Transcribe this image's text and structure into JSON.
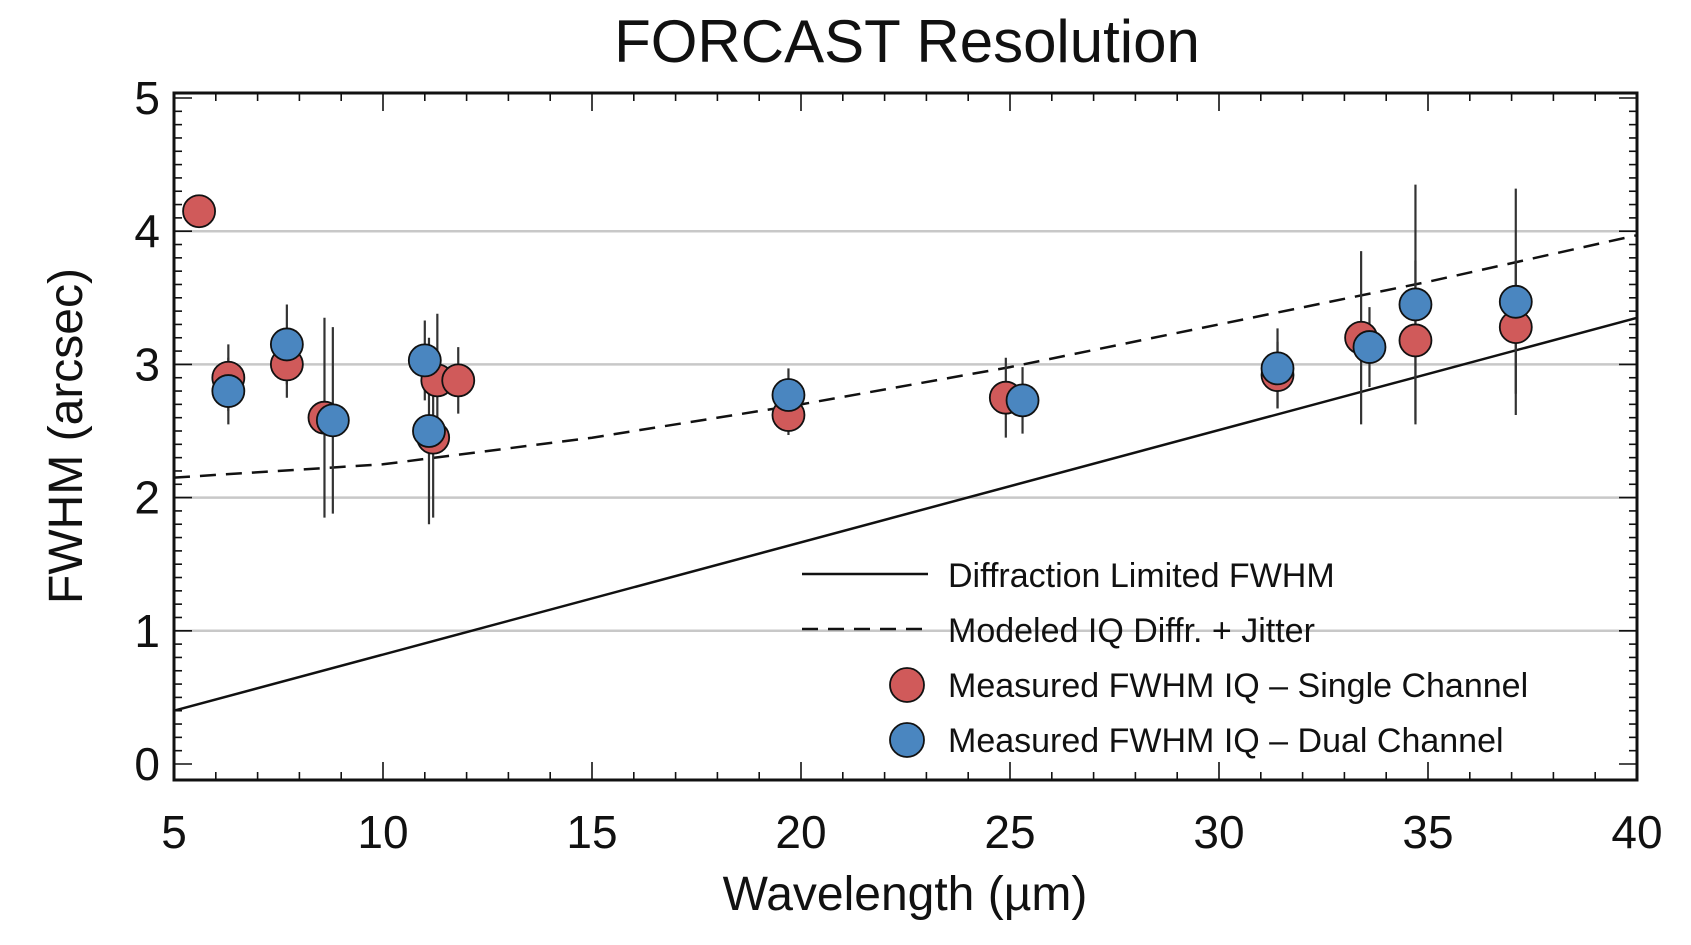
{
  "chart_data": {
    "type": "scatter",
    "title": "FORCAST Resolution",
    "xlabel": "Wavelength (µm)",
    "ylabel": "FWHM (arcsec)",
    "xlim": [
      5,
      40
    ],
    "ylim": [
      0,
      5
    ],
    "xticks": [
      "5",
      "10",
      "15",
      "20",
      "25",
      "30",
      "35",
      "40"
    ],
    "yticks": [
      "0",
      "1",
      "2",
      "3",
      "4",
      "5"
    ],
    "grid": "horizontal",
    "legend_position": "bottom-right",
    "lines": [
      {
        "name": "Diffraction Limited FWHM",
        "style": "solid",
        "x": [
          5,
          40
        ],
        "y": [
          0.4,
          3.35
        ]
      },
      {
        "name": "Modeled IQ Diffr. + Jitter",
        "style": "dashed",
        "x": [
          5,
          10,
          15,
          20,
          25,
          30,
          35,
          40
        ],
        "y": [
          2.15,
          2.25,
          2.45,
          2.7,
          2.98,
          3.3,
          3.62,
          3.97
        ]
      }
    ],
    "series": [
      {
        "name": "Measured FWHM IQ – Single Channel",
        "color": "#d05a5a",
        "points": [
          {
            "x": 5.6,
            "y": 4.15,
            "err": 0.05
          },
          {
            "x": 6.3,
            "y": 2.9,
            "err": 0.25
          },
          {
            "x": 7.7,
            "y": 3.0,
            "err": 0.25
          },
          {
            "x": 8.6,
            "y": 2.6,
            "err": 0.75
          },
          {
            "x": 11.2,
            "y": 2.45,
            "err": 0.6
          },
          {
            "x": 11.3,
            "y": 2.88,
            "err": 0.5
          },
          {
            "x": 11.8,
            "y": 2.88,
            "err": 0.25
          },
          {
            "x": 19.7,
            "y": 2.62,
            "err": 0.15
          },
          {
            "x": 24.9,
            "y": 2.75,
            "err": 0.3
          },
          {
            "x": 31.4,
            "y": 2.92,
            "err": 0.25
          },
          {
            "x": 33.4,
            "y": 3.2,
            "err": 0.65
          },
          {
            "x": 34.7,
            "y": 3.18,
            "err": 0.6
          },
          {
            "x": 37.1,
            "y": 3.28,
            "err": 0.5
          }
        ]
      },
      {
        "name": "Measured FWHM IQ – Dual Channel",
        "color": "#4a86c0",
        "points": [
          {
            "x": 6.3,
            "y": 2.8,
            "err": 0.25
          },
          {
            "x": 7.7,
            "y": 3.15,
            "err": 0.3
          },
          {
            "x": 8.8,
            "y": 2.58,
            "err": 0.7
          },
          {
            "x": 11.0,
            "y": 3.03,
            "err": 0.3
          },
          {
            "x": 11.1,
            "y": 2.5,
            "err": 0.7
          },
          {
            "x": 19.7,
            "y": 2.77,
            "err": 0.2
          },
          {
            "x": 25.3,
            "y": 2.73,
            "err": 0.25
          },
          {
            "x": 31.4,
            "y": 2.97,
            "err": 0.3
          },
          {
            "x": 33.6,
            "y": 3.13,
            "err": 0.3
          },
          {
            "x": 34.7,
            "y": 3.45,
            "err": 0.9
          },
          {
            "x": 37.1,
            "y": 3.47,
            "err": 0.85
          }
        ]
      }
    ]
  }
}
